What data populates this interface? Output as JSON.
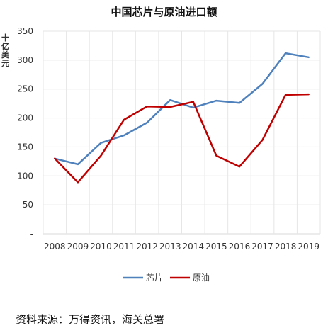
{
  "chart_data": {
    "type": "line",
    "title": "中国芯片与原油进口额",
    "ylabel": "十亿美元",
    "xlabel": "",
    "x": [
      "2008",
      "2009",
      "2010",
      "2011",
      "2012",
      "2013",
      "2014",
      "2015",
      "2016",
      "2017",
      "2018",
      "2019"
    ],
    "ylim": [
      0,
      350
    ],
    "y_ticks": [
      "-",
      "50",
      "100",
      "150",
      "200",
      "250",
      "300",
      "350"
    ],
    "grid": true,
    "legend_position": "bottom",
    "series": [
      {
        "name": "芯片",
        "color": "#4f81bd",
        "values": [
          130,
          120,
          157,
          170,
          192,
          231,
          218,
          230,
          226,
          259,
          312,
          305
        ]
      },
      {
        "name": "原油",
        "color": "#c00000",
        "values": [
          130,
          89,
          135,
          197,
          220,
          219,
          228,
          135,
          116,
          162,
          240,
          241
        ]
      }
    ]
  },
  "source": "资料来源：万得资讯，海关总署"
}
